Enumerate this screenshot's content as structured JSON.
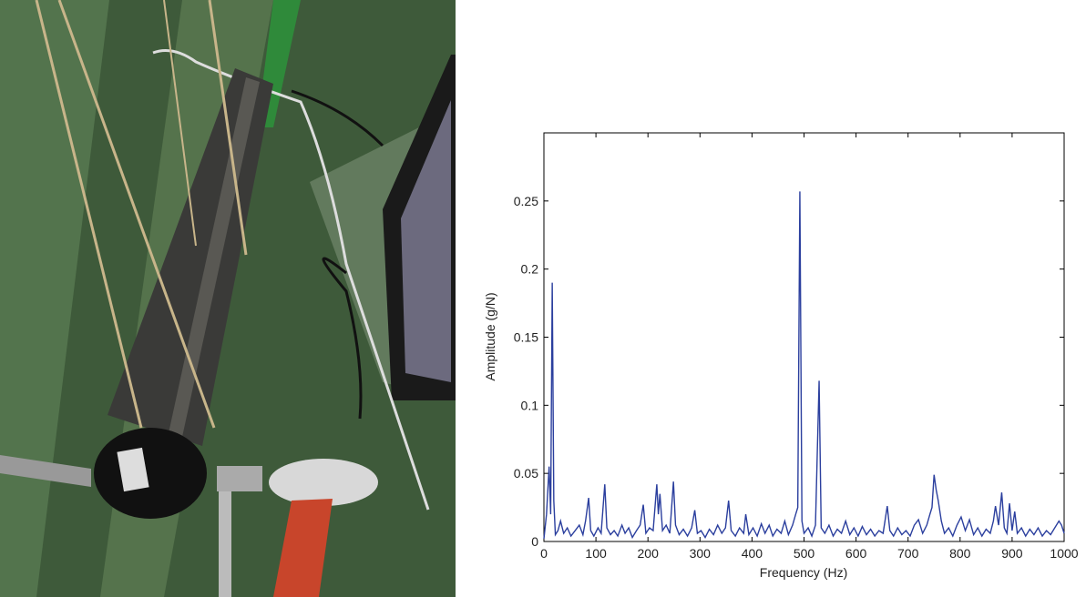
{
  "chart_data": {
    "type": "line",
    "xlabel": "Frequency (Hz)",
    "ylabel": "Amplitude (g/N)",
    "x": [
      0,
      5,
      10,
      13,
      16,
      19,
      22,
      27,
      32,
      38,
      45,
      52,
      60,
      68,
      75,
      80,
      86,
      90,
      96,
      104,
      110,
      117,
      121,
      128,
      135,
      142,
      150,
      156,
      163,
      170,
      178,
      185,
      191,
      196,
      203,
      210,
      217,
      220,
      223,
      228,
      235,
      242,
      249,
      253,
      260,
      268,
      276,
      284,
      290,
      295,
      302,
      310,
      318,
      326,
      334,
      342,
      349,
      355,
      360,
      368,
      376,
      384,
      388,
      394,
      402,
      410,
      418,
      425,
      433,
      440,
      448,
      456,
      463,
      470,
      478,
      484,
      488,
      492,
      496,
      500,
      508,
      515,
      522,
      529,
      533,
      540,
      548,
      556,
      564,
      572,
      580,
      588,
      596,
      604,
      612,
      620,
      628,
      636,
      644,
      652,
      660,
      665,
      672,
      680,
      688,
      696,
      704,
      712,
      720,
      728,
      736,
      742,
      746,
      750,
      754,
      758,
      764,
      770,
      778,
      786,
      794,
      802,
      810,
      818,
      826,
      834,
      842,
      850,
      858,
      864,
      868,
      874,
      880,
      885,
      890,
      895,
      900,
      905,
      910,
      918,
      926,
      934,
      942,
      950,
      958,
      966,
      974,
      982,
      990,
      995,
      1000
    ],
    "series": [
      {
        "color": "#2b3f9e",
        "values": [
          0.002,
          0.02,
          0.055,
          0.02,
          0.19,
          0.03,
          0.005,
          0.008,
          0.015,
          0.006,
          0.01,
          0.004,
          0.008,
          0.012,
          0.005,
          0.015,
          0.032,
          0.008,
          0.004,
          0.01,
          0.006,
          0.042,
          0.01,
          0.005,
          0.008,
          0.004,
          0.012,
          0.006,
          0.01,
          0.003,
          0.008,
          0.012,
          0.027,
          0.006,
          0.01,
          0.008,
          0.042,
          0.02,
          0.035,
          0.008,
          0.012,
          0.006,
          0.044,
          0.012,
          0.005,
          0.009,
          0.004,
          0.01,
          0.023,
          0.006,
          0.008,
          0.003,
          0.009,
          0.005,
          0.012,
          0.006,
          0.01,
          0.03,
          0.008,
          0.004,
          0.01,
          0.006,
          0.02,
          0.005,
          0.01,
          0.004,
          0.013,
          0.006,
          0.012,
          0.004,
          0.009,
          0.006,
          0.015,
          0.005,
          0.012,
          0.02,
          0.025,
          0.257,
          0.015,
          0.006,
          0.01,
          0.004,
          0.012,
          0.118,
          0.01,
          0.006,
          0.012,
          0.004,
          0.009,
          0.006,
          0.015,
          0.005,
          0.01,
          0.004,
          0.011,
          0.005,
          0.009,
          0.004,
          0.008,
          0.006,
          0.026,
          0.008,
          0.004,
          0.01,
          0.005,
          0.008,
          0.004,
          0.012,
          0.016,
          0.006,
          0.012,
          0.02,
          0.025,
          0.049,
          0.038,
          0.03,
          0.015,
          0.006,
          0.01,
          0.004,
          0.012,
          0.018,
          0.008,
          0.016,
          0.005,
          0.01,
          0.004,
          0.009,
          0.006,
          0.015,
          0.026,
          0.012,
          0.036,
          0.01,
          0.006,
          0.028,
          0.008,
          0.022,
          0.006,
          0.01,
          0.004,
          0.009,
          0.005,
          0.01,
          0.004,
          0.008,
          0.005,
          0.01,
          0.015,
          0.012,
          0.006
        ]
      }
    ],
    "xlim": [
      0,
      1000
    ],
    "xticks": [
      0,
      100,
      200,
      300,
      400,
      500,
      600,
      700,
      800,
      900,
      1000
    ],
    "ylim": [
      0,
      0.3
    ],
    "yticks": [
      0,
      0.05,
      0.1,
      0.15,
      0.2,
      0.25
    ]
  }
}
